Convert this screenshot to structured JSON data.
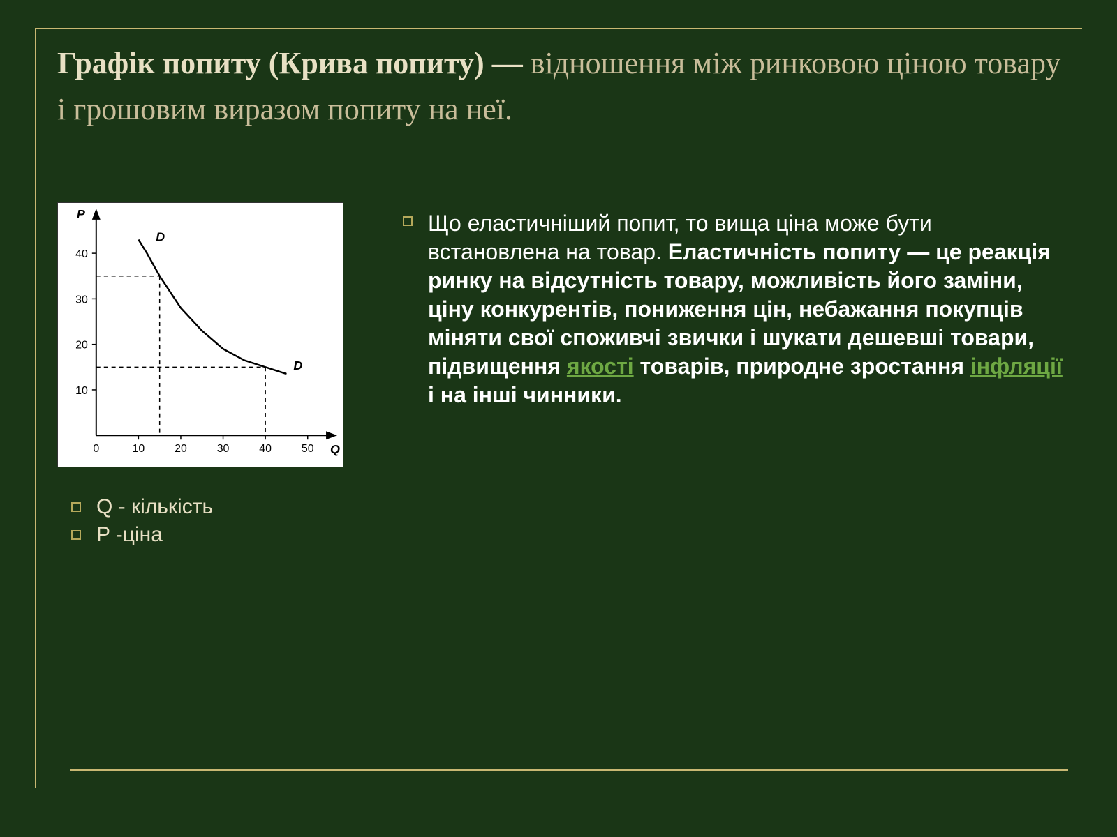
{
  "colors": {
    "background": "#1a3616",
    "frame": "#c9b873",
    "title_bold": "#e8e0c4",
    "title_normal": "#c9bd9a",
    "body_text": "#ffffff",
    "legend_text": "#e8e0c4",
    "bullet_border": "#b5a95b",
    "link": "#6ea843",
    "chart_bg": "#ffffff",
    "chart_ink": "#000000"
  },
  "title": {
    "bold_part": "Графік попиту (Крива попиту)",
    "dash": " — ",
    "rest": "відношення між ринковою ціною товару і грошовим виразом попиту на неї.",
    "fontsize": 44
  },
  "chart": {
    "type": "line",
    "y_axis_label": "P",
    "x_axis_label": "Q",
    "curve_label_top": "D",
    "curve_label_right": "D",
    "x_ticks": [
      0,
      10,
      20,
      30,
      40,
      50
    ],
    "y_ticks": [
      10,
      20,
      30,
      40
    ],
    "xlim": [
      0,
      55
    ],
    "ylim": [
      0,
      48
    ],
    "curve_points": [
      {
        "x": 10,
        "y": 43
      },
      {
        "x": 12,
        "y": 40
      },
      {
        "x": 15,
        "y": 35
      },
      {
        "x": 20,
        "y": 28
      },
      {
        "x": 25,
        "y": 23
      },
      {
        "x": 30,
        "y": 19
      },
      {
        "x": 35,
        "y": 16.5
      },
      {
        "x": 40,
        "y": 15
      },
      {
        "x": 45,
        "y": 13.5
      }
    ],
    "guide_lines": [
      {
        "from_x": 0,
        "from_y": 35,
        "to_x": 15,
        "to_y": 35
      },
      {
        "from_x": 15,
        "from_y": 35,
        "to_x": 15,
        "to_y": 0
      },
      {
        "from_x": 0,
        "from_y": 15,
        "to_x": 40,
        "to_y": 15
      },
      {
        "from_x": 40,
        "from_y": 15,
        "to_x": 40,
        "to_y": 0
      }
    ],
    "axis_color": "#000000",
    "curve_color": "#000000",
    "curve_width": 2.5,
    "guide_dash": "6,5",
    "label_fontsize": 18,
    "tick_fontsize": 16
  },
  "legend": {
    "items": [
      "Q - кількість",
      "P -ціна"
    ],
    "fontsize": 30
  },
  "body": {
    "fontsize": 32,
    "normal1": "Що еластичніший попит, то вища ціна може бути встановлена на товар. ",
    "bold1": "Еластичність попиту — це реакція ринку на відсутність товару, можливість його заміни, ціну конкурентів, пониження цін, небажання покупців міняти свої споживчі звички і шукати дешевші товари, підвищення ",
    "link1": "якості",
    "bold2": " товарів, природне зростання ",
    "link2": "інфляції",
    "bold3": " і на інші чинники."
  }
}
